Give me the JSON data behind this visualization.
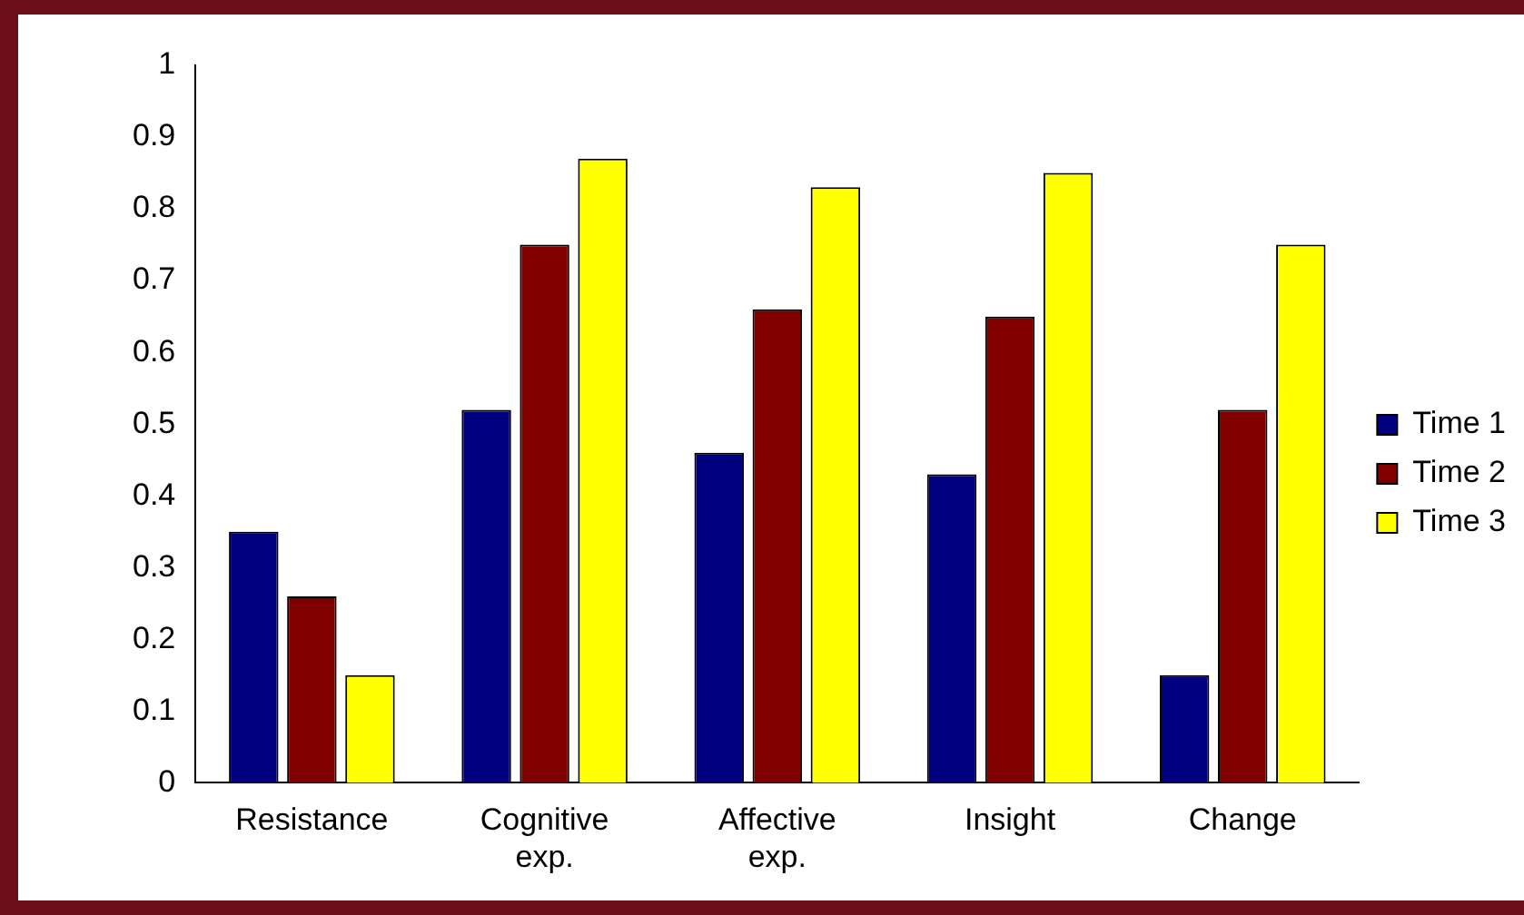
{
  "chart_data": {
    "type": "bar",
    "categories": [
      "Resistance",
      "Cognitive exp.",
      "Affective exp.",
      "Insight",
      "Change"
    ],
    "series": [
      {
        "name": "Time 1",
        "color": "#000080",
        "values": [
          0.35,
          0.52,
          0.46,
          0.43,
          0.15
        ]
      },
      {
        "name": "Time 2",
        "color": "#800000",
        "values": [
          0.26,
          0.75,
          0.66,
          0.65,
          0.52
        ]
      },
      {
        "name": "Time 3",
        "color": "#ffff00",
        "values": [
          0.15,
          0.87,
          0.83,
          0.85,
          0.75
        ]
      }
    ],
    "ylim": [
      0,
      1
    ],
    "yticks": [
      0,
      0.1,
      0.2,
      0.3,
      0.4,
      0.5,
      0.6,
      0.7,
      0.8,
      0.9,
      1
    ],
    "grid": false,
    "legend": "right"
  }
}
